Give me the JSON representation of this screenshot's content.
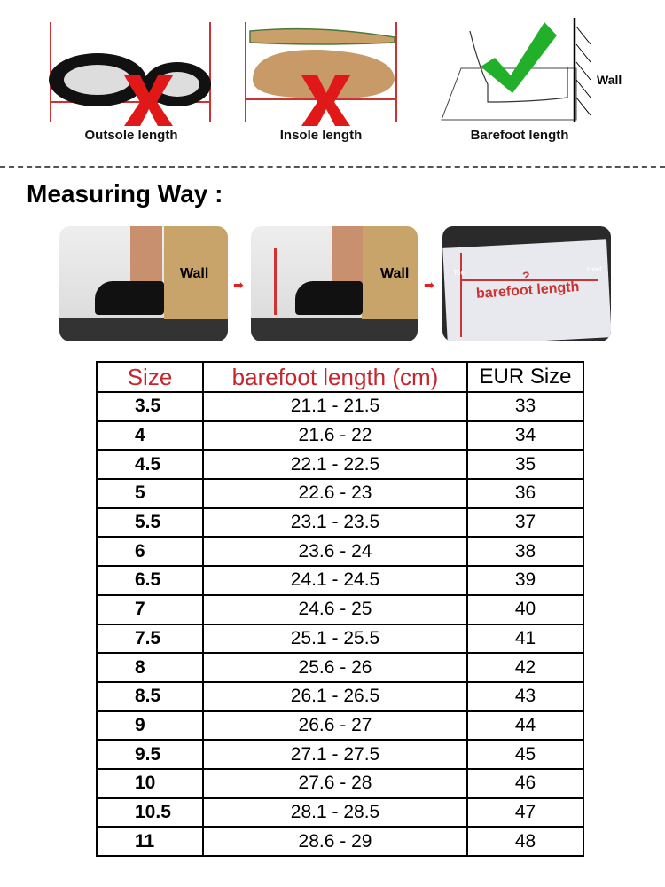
{
  "top_section": {
    "methods": [
      {
        "label": "Outsole length",
        "mark": "x-icon",
        "correct": false
      },
      {
        "label": "Insole length",
        "mark": "x-icon",
        "correct": false
      },
      {
        "label": "Barefoot length",
        "mark": "checkmark-icon",
        "correct": true,
        "wall_label": "Wall"
      }
    ]
  },
  "measuring": {
    "title": "Measuring Way :",
    "steps": [
      {
        "wall_label": "Wall"
      },
      {
        "wall_label": "Wall"
      },
      {
        "toe_label": "Toe",
        "heel_label": "Heel",
        "question": "?",
        "length_label": "barefoot length"
      }
    ]
  },
  "colors": {
    "header_red": "#c4262e",
    "x_red": "#e01818",
    "check_green": "#22b02a",
    "box_brown": "#c9a46a"
  },
  "size_table": {
    "headers": [
      "Size",
      "barefoot length (cm)",
      "EUR Size"
    ],
    "rows": [
      [
        "3.5",
        "21.1 - 21.5",
        "33"
      ],
      [
        "4",
        "21.6 - 22",
        "34"
      ],
      [
        "4.5",
        "22.1 - 22.5",
        "35"
      ],
      [
        "5",
        "22.6 - 23",
        "36"
      ],
      [
        "5.5",
        "23.1 - 23.5",
        "37"
      ],
      [
        "6",
        "23.6 - 24",
        "38"
      ],
      [
        "6.5",
        "24.1 - 24.5",
        "39"
      ],
      [
        "7",
        "24.6 - 25",
        "40"
      ],
      [
        "7.5",
        "25.1 - 25.5",
        "41"
      ],
      [
        "8",
        "25.6 - 26",
        "42"
      ],
      [
        "8.5",
        "26.1 - 26.5",
        "43"
      ],
      [
        "9",
        "26.6 - 27",
        "44"
      ],
      [
        "9.5",
        "27.1 - 27.5",
        "45"
      ],
      [
        "10",
        "27.6 - 28",
        "46"
      ],
      [
        "10.5",
        "28.1 - 28.5",
        "47"
      ],
      [
        "11",
        "28.6 - 29",
        "48"
      ]
    ]
  }
}
